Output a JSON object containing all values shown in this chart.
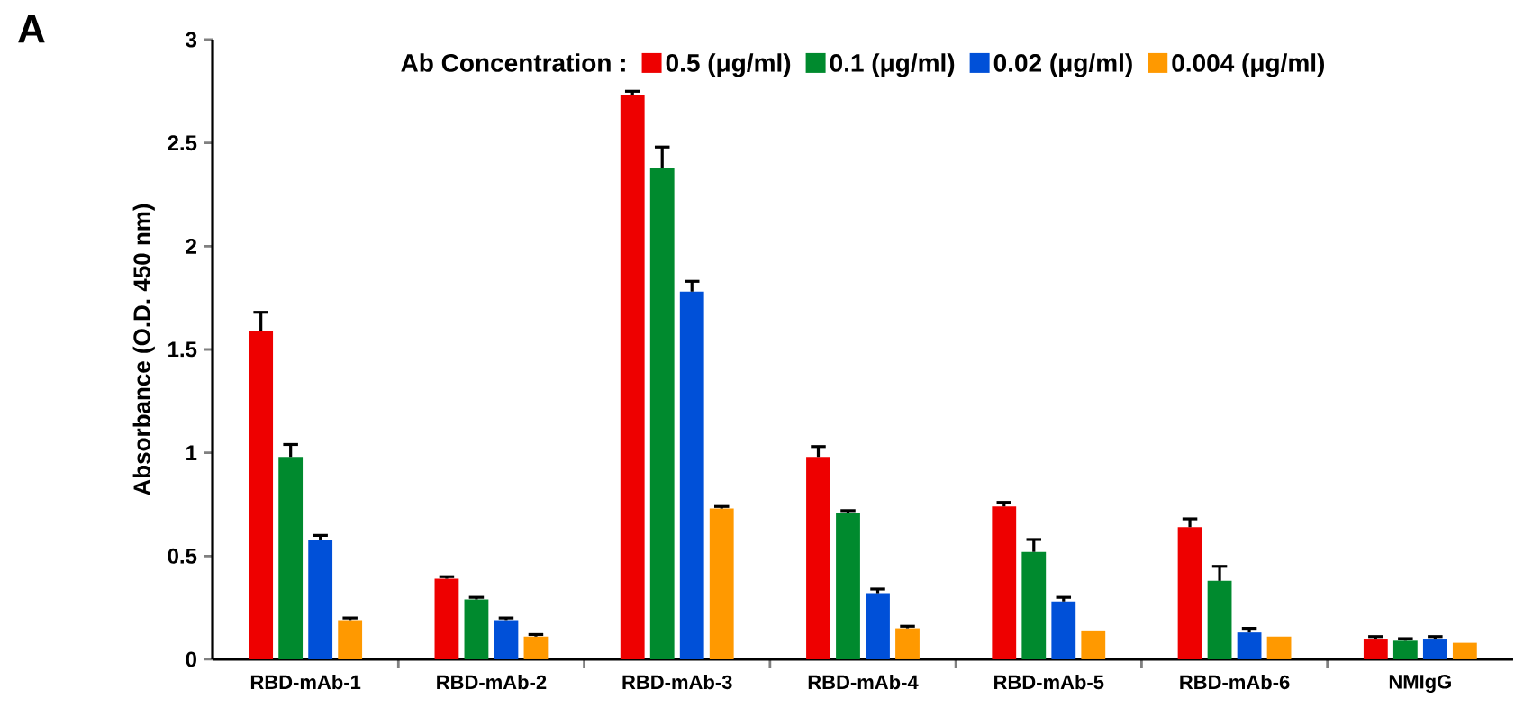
{
  "chart_data": {
    "type": "bar",
    "ylabel": "Absorbance (O.D. 450 nm)",
    "legend_title": "Ab Concentration :",
    "annotations": [
      "A"
    ],
    "categories": [
      "RBD-mAb-1",
      "RBD-mAb-2",
      "RBD-mAb-3",
      "RBD-mAb-4",
      "RBD-mAb-5",
      "RBD-mAb-6",
      "NMIgG"
    ],
    "ylim": [
      0,
      3
    ],
    "yticks": [
      0,
      0.5,
      1,
      1.5,
      2,
      2.5,
      3
    ],
    "grid": false,
    "legend": "top",
    "series": [
      {
        "name": "0.5 (μg/ml)",
        "color": "#ee0000",
        "values": [
          1.59,
          0.39,
          2.73,
          0.98,
          0.74,
          0.64,
          0.1
        ],
        "errors": [
          [
            1.59,
            1.68
          ],
          [
            0.39,
            0.4
          ],
          [
            2.73,
            2.75
          ],
          [
            0.98,
            1.03
          ],
          [
            0.74,
            0.76
          ],
          [
            0.64,
            0.68
          ],
          [
            0.1,
            0.11
          ]
        ]
      },
      {
        "name": "0.1 (μg/ml)",
        "color": "#008a2e",
        "values": [
          0.98,
          0.29,
          2.38,
          0.71,
          0.52,
          0.38,
          0.09
        ],
        "errors": [
          [
            0.98,
            1.04
          ],
          [
            0.29,
            0.3
          ],
          [
            2.38,
            2.48
          ],
          [
            0.71,
            0.72
          ],
          [
            0.52,
            0.58
          ],
          [
            0.38,
            0.45
          ],
          [
            0.09,
            0.1
          ]
        ]
      },
      {
        "name": "0.02 (μg/ml)",
        "color": "#0050d8",
        "values": [
          0.58,
          0.19,
          1.78,
          0.32,
          0.28,
          0.13,
          0.1
        ],
        "errors": [
          [
            0.58,
            0.6
          ],
          [
            0.19,
            0.2
          ],
          [
            1.78,
            1.83
          ],
          [
            0.32,
            0.34
          ],
          [
            0.28,
            0.3
          ],
          [
            0.13,
            0.15
          ],
          [
            0.1,
            0.11
          ]
        ]
      },
      {
        "name": "0.004 (μg/ml)",
        "color": "#ff9900",
        "values": [
          0.19,
          0.11,
          0.73,
          0.15,
          0.14,
          0.11,
          0.08
        ],
        "errors": [
          [
            0.19,
            0.2
          ],
          [
            0.11,
            0.12
          ],
          [
            0.73,
            0.74
          ],
          [
            0.15,
            0.16
          ],
          null,
          null,
          null
        ]
      }
    ]
  }
}
